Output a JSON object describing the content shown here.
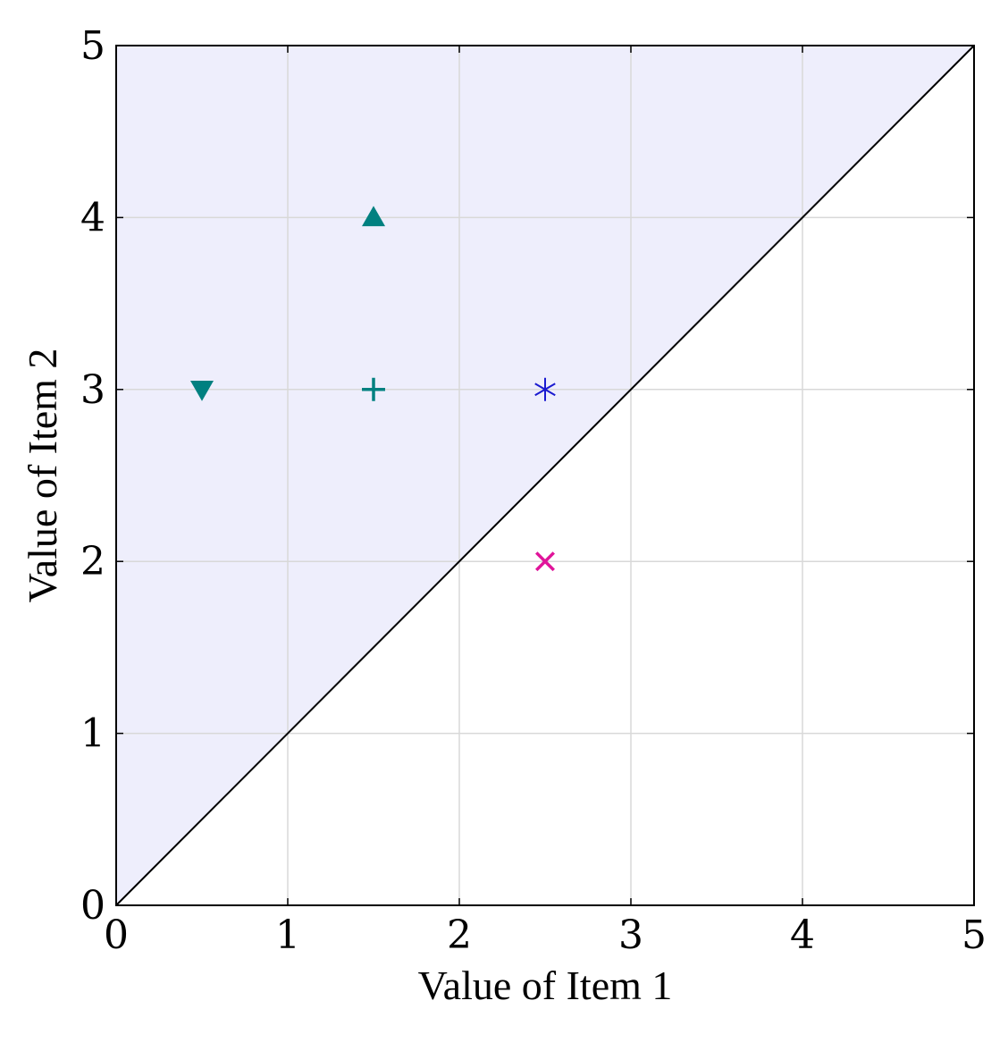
{
  "chart_data": {
    "type": "scatter",
    "title": "",
    "xlabel": "Value of Item 1",
    "ylabel": "Value of Item 2",
    "xlim": [
      0,
      5
    ],
    "ylim": [
      0,
      5
    ],
    "x_ticks": [
      "0",
      "1",
      "2",
      "3",
      "4",
      "5"
    ],
    "y_ticks": [
      "0",
      "1",
      "2",
      "3",
      "4",
      "5"
    ],
    "grid": true,
    "legend": "none",
    "reference_line": {
      "from": [
        0,
        0
      ],
      "to": [
        5,
        5
      ],
      "color": "#000000"
    },
    "shaded_region": {
      "description": "above diagonal y = x",
      "color": "#eeeefc"
    },
    "points": [
      {
        "x": 0.5,
        "y": 3,
        "marker": "triangle-down",
        "color": "#008080"
      },
      {
        "x": 1.5,
        "y": 4,
        "marker": "triangle-up",
        "color": "#008080"
      },
      {
        "x": 1.5,
        "y": 3,
        "marker": "plus",
        "color": "#008080"
      },
      {
        "x": 2.5,
        "y": 3,
        "marker": "asterisk",
        "color": "#1a1ad0"
      },
      {
        "x": 2.5,
        "y": 2,
        "marker": "cross",
        "color": "#e0149a"
      }
    ]
  }
}
